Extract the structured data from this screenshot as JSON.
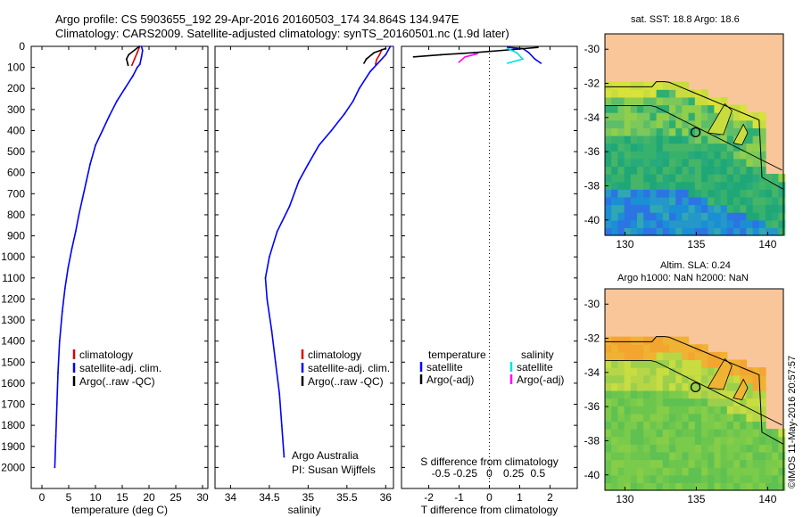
{
  "header": {
    "line1": "Argo profile: CS 5903655_192 29-Apr-2016 20160503_174 34.864S 134.947E",
    "line2": "Climatology: CARS2009. Satellite-adjusted climatology: synTS_20160501.nc (1.9d later)"
  },
  "maps": {
    "sst_title": "sat. SST: 18.8 Argo: 18.6",
    "sla_title1": "Altim. SLA: 0.24",
    "sla_title2": "Argo h1000: NaN h2000: NaN",
    "side_credit": "©IMOS 11-May-2016 20:57:57",
    "lon_ticks": [
      "130",
      "135",
      "140"
    ],
    "lat_ticks": [
      "-30",
      "-32",
      "-34",
      "-36",
      "-38",
      "-40"
    ],
    "colors": {
      "land": "#f9c69a",
      "float_marker": "#000000"
    }
  },
  "legends": {
    "climatology": "climatology",
    "satellite_adj": "satellite-adj. clim.",
    "argo_raw": "Argo(..raw -QC)",
    "temperature": "temperature",
    "salinity": "salinity",
    "satellite": "satellite",
    "argo_adj": "Argo(-adj)"
  },
  "annotations": {
    "org": "Argo Australia",
    "pi": "PI: Susan Wijffels"
  },
  "chart_data": [
    {
      "type": "line",
      "panel": "temperature",
      "xlabel": "temperature (deg C)",
      "ylabel": "",
      "xlim": [
        -2,
        31
      ],
      "ylim": [
        2100,
        0
      ],
      "x_ticks": [
        "0",
        "5",
        "10",
        "15",
        "20",
        "25",
        "30"
      ],
      "y_ticks": [
        "0",
        "100",
        "200",
        "300",
        "400",
        "500",
        "600",
        "700",
        "800",
        "900",
        "1000",
        "1100",
        "1200",
        "1300",
        "1400",
        "1500",
        "1600",
        "1700",
        "1800",
        "1900",
        "2000"
      ],
      "series": [
        {
          "name": "climatology",
          "color": "#dd0000",
          "points": [
            [
              18.2,
              5
            ],
            [
              17.8,
              30
            ],
            [
              17.3,
              60
            ],
            [
              16.8,
              90
            ]
          ]
        },
        {
          "name": "satellite-adj. clim.",
          "color": "#0000ff",
          "points": [
            [
              18.6,
              0
            ],
            [
              18.8,
              20
            ],
            [
              18.6,
              50
            ],
            [
              18.3,
              85
            ],
            [
              17.8,
              100
            ],
            [
              17.0,
              140
            ],
            [
              15.5,
              200
            ],
            [
              14.0,
              260
            ],
            [
              12.6,
              330
            ],
            [
              11.3,
              400
            ],
            [
              10.0,
              470
            ],
            [
              9.0,
              560
            ],
            [
              8.3,
              640
            ],
            [
              7.6,
              720
            ],
            [
              6.9,
              800
            ],
            [
              6.3,
              880
            ],
            [
              5.6,
              960
            ],
            [
              4.9,
              1050
            ],
            [
              4.3,
              1150
            ],
            [
              3.8,
              1260
            ],
            [
              3.3,
              1400
            ],
            [
              3.0,
              1550
            ],
            [
              2.8,
              1700
            ],
            [
              2.6,
              1850
            ],
            [
              2.4,
              2000
            ]
          ]
        },
        {
          "name": "Argo(..raw -QC)",
          "color": "#000000",
          "points": [
            [
              18.2,
              0
            ],
            [
              16.2,
              40
            ],
            [
              15.8,
              60
            ],
            [
              16.0,
              80
            ],
            [
              16.1,
              90
            ]
          ]
        }
      ]
    },
    {
      "type": "line",
      "panel": "salinity",
      "xlabel": "salinity",
      "ylabel": "",
      "xlim": [
        33.8,
        36.1
      ],
      "ylim": [
        2100,
        0
      ],
      "x_ticks": [
        "34",
        "34.5",
        "35",
        "35.5",
        "36"
      ],
      "series": [
        {
          "name": "climatology",
          "color": "#dd0000",
          "points": [
            [
              35.95,
              15
            ],
            [
              35.92,
              40
            ],
            [
              35.88,
              65
            ],
            [
              35.87,
              85
            ]
          ]
        },
        {
          "name": "satellite-adj. clim.",
          "color": "#0000ff",
          "points": [
            [
              36.06,
              0
            ],
            [
              36.0,
              40
            ],
            [
              35.9,
              80
            ],
            [
              35.8,
              120
            ],
            [
              35.66,
              200
            ],
            [
              35.58,
              260
            ],
            [
              35.47,
              320
            ],
            [
              35.3,
              400
            ],
            [
              35.14,
              470
            ],
            [
              35.0,
              560
            ],
            [
              34.88,
              640
            ],
            [
              34.76,
              760
            ],
            [
              34.6,
              880
            ],
            [
              34.5,
              1000
            ],
            [
              34.45,
              1100
            ],
            [
              34.47,
              1200
            ],
            [
              34.53,
              1350
            ],
            [
              34.58,
              1500
            ],
            [
              34.63,
              1650
            ],
            [
              34.66,
              1800
            ],
            [
              34.69,
              1950
            ]
          ]
        },
        {
          "name": "Argo(..raw -QC)",
          "color": "#000000",
          "points": [
            [
              36.0,
              10
            ],
            [
              35.85,
              30
            ],
            [
              35.75,
              60
            ],
            [
              35.72,
              80
            ]
          ]
        }
      ]
    },
    {
      "type": "line",
      "panel": "difference",
      "xlabel": "T difference from climatology",
      "xlabel_top": "S difference from climatology",
      "xlim": [
        -2.9,
        2.9
      ],
      "ylim": [
        2100,
        0
      ],
      "x_ticks": [
        "-2",
        "-1",
        "0",
        "1",
        "2"
      ],
      "x_ticks_top": [
        "-0.5",
        "-0.25",
        "0",
        "0.25",
        "0.5"
      ],
      "series": [
        {
          "name": "temperature satellite",
          "color": "#0000ff",
          "points": [
            [
              0.6,
              5
            ],
            [
              1.1,
              10
            ],
            [
              1.3,
              30
            ],
            [
              1.5,
              60
            ],
            [
              1.7,
              80
            ]
          ]
        },
        {
          "name": "temperature Argo(-adj)",
          "color": "#000000",
          "points": [
            [
              -2.5,
              50
            ],
            [
              -1.6,
              40
            ],
            [
              -0.5,
              30
            ],
            [
              0.8,
              15
            ],
            [
              1.6,
              5
            ]
          ]
        },
        {
          "name": "salinity satellite",
          "color": "#00e0e0",
          "points": [
            [
              0.6,
              10
            ],
            [
              0.9,
              30
            ],
            [
              1.1,
              60
            ],
            [
              0.6,
              80
            ]
          ]
        },
        {
          "name": "salinity Argo(-adj)",
          "color": "#ff00ff",
          "points": [
            [
              -0.4,
              35
            ],
            [
              -0.8,
              50
            ],
            [
              -1.0,
              75
            ]
          ]
        }
      ]
    }
  ]
}
